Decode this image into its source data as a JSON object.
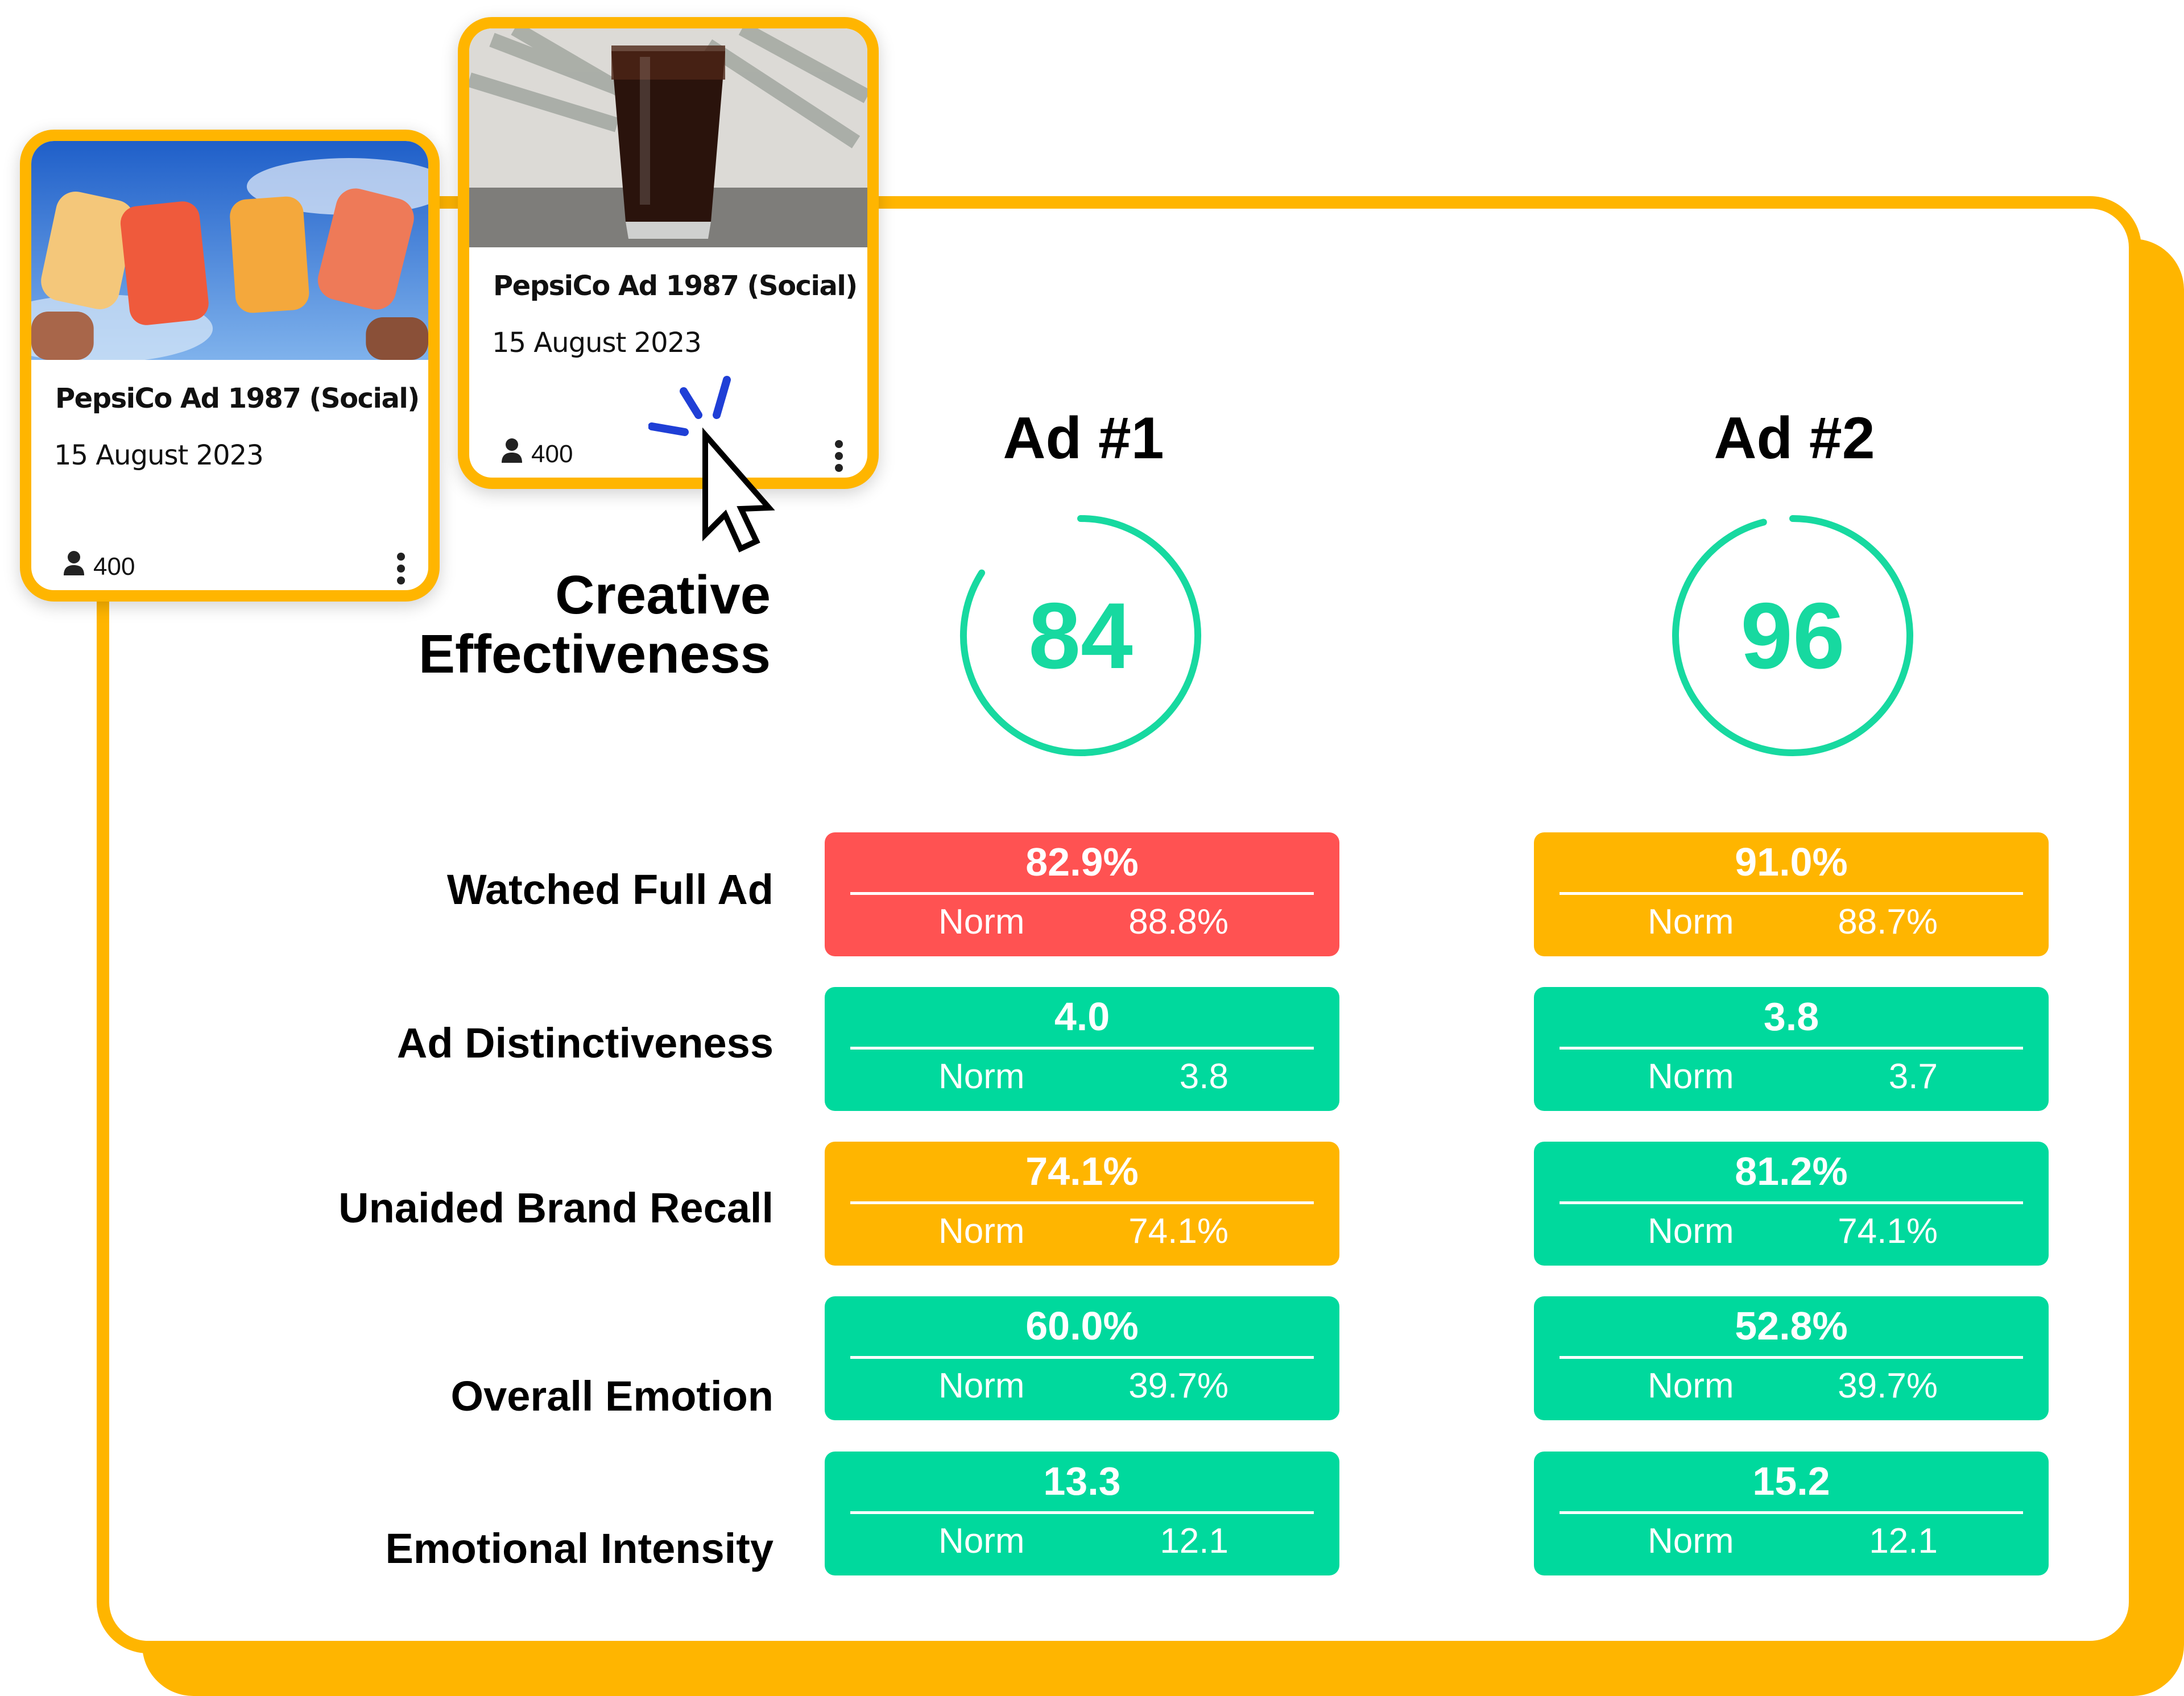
{
  "cards": [
    {
      "title": "PepsiCo Ad 1987 (Social)",
      "date": "15 August 2023",
      "respondents": "400",
      "image": "popsicles-photo"
    },
    {
      "title": "PepsiCo Ad 1987 (Social)",
      "date": "15 August 2023",
      "respondents": "400",
      "image": "cola-glass-photo"
    }
  ],
  "section_title_line1": "Creative",
  "section_title_line2": "Effectiveness",
  "ads": [
    {
      "heading": "Ad #1",
      "score": "84",
      "score_value": 84
    },
    {
      "heading": "Ad #2",
      "score": "96",
      "score_value": 96
    }
  ],
  "metrics": [
    {
      "label": "Watched Full Ad",
      "ad1": {
        "value": "82.9%",
        "norm_label": "Norm",
        "norm": "88.8%",
        "status": "red"
      },
      "ad2": {
        "value": "91.0%",
        "norm_label": "Norm",
        "norm": "88.7%",
        "status": "orange"
      }
    },
    {
      "label": "Ad Distinctiveness",
      "ad1": {
        "value": "4.0",
        "norm_label": "Norm",
        "norm": "3.8",
        "status": "green"
      },
      "ad2": {
        "value": "3.8",
        "norm_label": "Norm",
        "norm": "3.7",
        "status": "green"
      }
    },
    {
      "label": "Unaided Brand Recall",
      "ad1": {
        "value": "74.1%",
        "norm_label": "Norm",
        "norm": "74.1%",
        "status": "orange"
      },
      "ad2": {
        "value": "81.2%",
        "norm_label": "Norm",
        "norm": "74.1%",
        "status": "green"
      }
    },
    {
      "label": "Overall Emotion",
      "ad1": {
        "value": "60.0%",
        "norm_label": "Norm",
        "norm": "39.7%",
        "status": "green"
      },
      "ad2": {
        "value": "52.8%",
        "norm_label": "Norm",
        "norm": "39.7%",
        "status": "green"
      }
    },
    {
      "label": "Emotional Intensity",
      "ad1": {
        "value": "13.3",
        "norm_label": "Norm",
        "norm": "12.1",
        "status": "green"
      },
      "ad2": {
        "value": "15.2",
        "norm_label": "Norm",
        "norm": "12.1",
        "status": "green"
      }
    }
  ],
  "colors": {
    "brand_border": "#FFB500",
    "good": "#00D99D",
    "average": "#FFB500",
    "bad": "#FF5252",
    "gauge": "#17D9A0"
  },
  "icons": {
    "respondents": "person-icon",
    "menu": "more-vertical-icon",
    "cursor": "click-cursor-icon"
  }
}
